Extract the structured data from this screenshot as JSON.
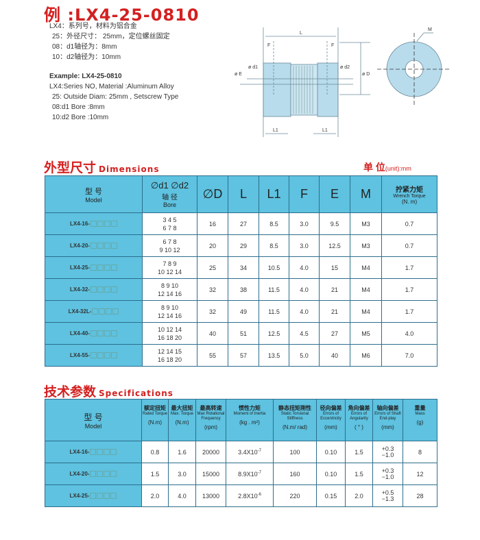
{
  "example": {
    "title": "例 :LX4-25-0810",
    "cn_lines": [
      "LX4：系列号，材料为铝合金",
      "25：外径尺寸： 25mm，定位螺丝固定",
      "08：d1轴径为：8mm",
      "10：d2轴径为：10mm"
    ],
    "en_title": "Example: LX4-25-0810",
    "en_lines": [
      "LX4:Series NO, Material :Aluminum Alloy",
      "25: Outside Diam: 25mm , Setscrew Type",
      "08:d1 Bore :8mm",
      "10:d2 Bore :10mm"
    ]
  },
  "diagram": {
    "labels": {
      "L": "L",
      "F": "F",
      "E": "ø E",
      "d1": "ø d1",
      "d2": "ø d2",
      "D": "ø D",
      "L1": "L1",
      "M": "M"
    }
  },
  "dimensions": {
    "title_cn": "外型尺寸",
    "title_en": "Dimensions",
    "unit_cn": "单 位",
    "unit_en": "(unit):mm",
    "headers": {
      "model_cn": "型 号",
      "model_en": "Model",
      "bore_sym": "∅d1 ∅d2",
      "bore_cn": "轴 径",
      "bore_en": "Bore",
      "D": "∅D",
      "L": "L",
      "L1": "L1",
      "F": "F",
      "E": "E",
      "M": "M",
      "torque_cn": "拧紧力矩",
      "torque_en": "Wrench Torque",
      "torque_unit": "(N.  m)"
    },
    "rows": [
      {
        "model": "LX4-16-",
        "bore1": "3 4 5",
        "bore2": "6 7 8",
        "D": "16",
        "L": "27",
        "L1": "8.5",
        "F": "3.0",
        "E": "9.5",
        "M": "M3",
        "torque": "0.7"
      },
      {
        "model": "LX4-20-",
        "bore1": "6 7 8",
        "bore2": "9 10 12",
        "D": "20",
        "L": "29",
        "L1": "8.5",
        "F": "3.0",
        "E": "12.5",
        "M": "M3",
        "torque": "0.7"
      },
      {
        "model": "LX4-25-",
        "bore1": "7 8 9",
        "bore2": "10 12 14",
        "D": "25",
        "L": "34",
        "L1": "10.5",
        "F": "4.0",
        "E": "15",
        "M": "M4",
        "torque": "1.7"
      },
      {
        "model": "LX4-32-",
        "bore1": "8 9 10",
        "bore2": "12 14 16",
        "D": "32",
        "L": "38",
        "L1": "11.5",
        "F": "4.0",
        "E": "21",
        "M": "M4",
        "torque": "1.7"
      },
      {
        "model": "LX4-32L-",
        "bore1": "8 9 10",
        "bore2": "12 14 16",
        "D": "32",
        "L": "49",
        "L1": "11.5",
        "F": "4.0",
        "E": "21",
        "M": "M4",
        "torque": "1.7"
      },
      {
        "model": "LX4-40-",
        "bore1": "10 12 14",
        "bore2": "16 18 20",
        "D": "40",
        "L": "51",
        "L1": "12.5",
        "F": "4.5",
        "E": "27",
        "M": "M5",
        "torque": "4.0"
      },
      {
        "model": "LX4-55-",
        "bore1": "12 14 15",
        "bore2": "16 18 20",
        "D": "55",
        "L": "57",
        "L1": "13.5",
        "F": "5.0",
        "E": "40",
        "M": "M6",
        "torque": "7.0"
      }
    ]
  },
  "specs": {
    "title_cn": "技术参数",
    "title_en": "Specifications",
    "headers": [
      {
        "cn": "型 号",
        "en": "Model",
        "unit": ""
      },
      {
        "cn": "额定扭矩",
        "en": "Rated Torque",
        "unit": "(N.m)"
      },
      {
        "cn": "最大扭矩",
        "en": "Max. Torque",
        "unit": "(N.m)"
      },
      {
        "cn": "最高转速",
        "en": "Max Rotational Frequency",
        "unit": "(rpm)"
      },
      {
        "cn": "惯性力矩",
        "en": "Moment of Inertia",
        "unit": "(kg . m²)"
      },
      {
        "cn": "静态扭矩刚性",
        "en": "Static Torsional Stiffness",
        "unit": "(N.m/  rad)"
      },
      {
        "cn": "径向偏差",
        "en": "Errors of Eccentricity",
        "unit": "(mm)"
      },
      {
        "cn": "角向偏差",
        "en": "Errors of Angularity",
        "unit": "( ° )"
      },
      {
        "cn": "轴向偏差",
        "en": "Errors of Shaft End-play",
        "unit": "(mm)"
      },
      {
        "cn": "重量",
        "en": "Mass",
        "unit": "(g)"
      }
    ],
    "rows": [
      {
        "model": "LX4-16-",
        "rated": "0.8",
        "max": "1.6",
        "rpm": "20000",
        "inertia": "3.4X10",
        "inertia_exp": "-7",
        "stiff": "100",
        "ecc": "0.10",
        "ang": "1.5",
        "end_plus": "+0.3",
        "end_minus": "−1.0",
        "mass": "8"
      },
      {
        "model": "LX4-20-",
        "rated": "1.5",
        "max": "3.0",
        "rpm": "15000",
        "inertia": "8.9X10",
        "inertia_exp": "-7",
        "stiff": "160",
        "ecc": "0.10",
        "ang": "1.5",
        "end_plus": "+0.3",
        "end_minus": "−1.0",
        "mass": "12"
      },
      {
        "model": "LX4-25-",
        "rated": "2.0",
        "max": "4.0",
        "rpm": "13000",
        "inertia": "2.8X10",
        "inertia_exp": "-6",
        "stiff": "220",
        "ecc": "0.15",
        "ang": "2.0",
        "end_plus": "+0.5",
        "end_minus": "−1.3",
        "mass": "28"
      }
    ]
  }
}
